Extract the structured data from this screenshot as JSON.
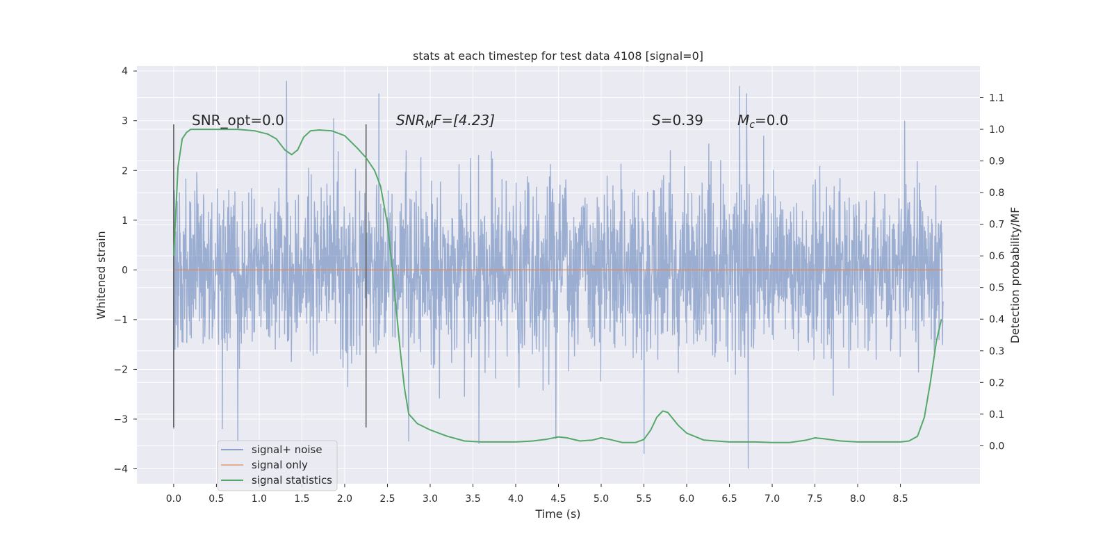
{
  "chart_data": {
    "type": "line",
    "title": "stats at each timestep for test data 4108 [signal=0]",
    "xlabel": "Time (s)",
    "ylabel": "Whitened strain",
    "y2label": "Detection probability/MF",
    "xlim": [
      -0.43,
      9.43
    ],
    "ylim": [
      -4.3,
      4.1
    ],
    "y2lim": [
      -0.12,
      1.2
    ],
    "x_ticks": [
      "0.0",
      "0.5",
      "1.0",
      "1.5",
      "2.0",
      "2.5",
      "3.0",
      "3.5",
      "4.0",
      "4.5",
      "5.0",
      "5.5",
      "6.0",
      "6.5",
      "7.0",
      "7.5",
      "8.0",
      "8.5"
    ],
    "y_ticks": [
      "4",
      "3",
      "2",
      "1",
      "0",
      "−1",
      "−2",
      "−3",
      "−4"
    ],
    "y2_ticks": [
      "1.1",
      "1.0",
      "0.9",
      "0.8",
      "0.7",
      "0.6",
      "0.5",
      "0.4",
      "0.3",
      "0.2",
      "0.1",
      "0.0"
    ],
    "grid": true,
    "legend_position": "lower-left",
    "colors": {
      "background": "#eaeaf2",
      "grid": "#ffffff",
      "noise": "#4c72b0",
      "signal": "#dd8452",
      "statistics": "#55a868",
      "marker": "#555555"
    },
    "annotations": {
      "snr_opt": "SNR_opt=0.0",
      "snr_mf_prefix": "SNR",
      "snr_mf_sub": "M",
      "snr_mf_rest": "F=[4.23]",
      "s_var": "S",
      "s_value": "=0.39",
      "mc_var": "M",
      "mc_sub": "c",
      "mc_value": "=0.0"
    },
    "vlines": [
      0.0,
      2.25
    ],
    "series": [
      {
        "name": "signal+ noise",
        "axis": "left",
        "x_range": [
          0.0,
          9.0
        ],
        "spread": 0.85,
        "envelope_peaks": [
          [
            0.0,
            -3.2
          ],
          [
            0.57,
            -3.2
          ],
          [
            0.75,
            -3.45
          ],
          [
            1.32,
            3.8
          ],
          [
            1.87,
            3.05
          ],
          [
            2.4,
            3.55
          ],
          [
            2.75,
            -3.45
          ],
          [
            3.57,
            -3.5
          ],
          [
            4.47,
            -3.4
          ],
          [
            5.5,
            -3.7
          ],
          [
            6.62,
            3.7
          ],
          [
            6.7,
            3.55
          ],
          [
            6.72,
            -4.0
          ],
          [
            8.55,
            3.0
          ]
        ]
      },
      {
        "name": "signal only",
        "axis": "left",
        "x": [
          0.0,
          9.0
        ],
        "y": [
          0.0,
          0.0
        ]
      },
      {
        "name": "signal statistics",
        "axis": "right",
        "x": [
          0.0,
          0.05,
          0.1,
          0.15,
          0.2,
          0.3,
          0.5,
          0.75,
          0.95,
          1.1,
          1.2,
          1.3,
          1.38,
          1.45,
          1.52,
          1.6,
          1.7,
          1.85,
          2.0,
          2.15,
          2.25,
          2.35,
          2.42,
          2.5,
          2.55,
          2.6,
          2.65,
          2.7,
          2.75,
          2.85,
          3.0,
          3.2,
          3.4,
          3.6,
          3.8,
          4.0,
          4.2,
          4.35,
          4.5,
          4.6,
          4.75,
          4.9,
          5.0,
          5.1,
          5.25,
          5.4,
          5.5,
          5.58,
          5.65,
          5.72,
          5.78,
          5.9,
          6.0,
          6.2,
          6.5,
          6.8,
          7.0,
          7.2,
          7.4,
          7.5,
          7.6,
          7.8,
          8.0,
          8.3,
          8.5,
          8.6,
          8.7,
          8.78,
          8.85,
          8.92,
          8.98
        ],
        "y": [
          0.6,
          0.88,
          0.97,
          0.99,
          1.0,
          1.0,
          1.0,
          1.0,
          0.995,
          0.985,
          0.97,
          0.935,
          0.92,
          0.935,
          0.975,
          0.995,
          0.998,
          0.995,
          0.98,
          0.94,
          0.91,
          0.87,
          0.82,
          0.7,
          0.58,
          0.44,
          0.3,
          0.18,
          0.1,
          0.07,
          0.05,
          0.03,
          0.015,
          0.012,
          0.012,
          0.012,
          0.015,
          0.02,
          0.028,
          0.025,
          0.015,
          0.018,
          0.025,
          0.02,
          0.01,
          0.01,
          0.02,
          0.05,
          0.09,
          0.11,
          0.105,
          0.065,
          0.04,
          0.018,
          0.012,
          0.012,
          0.01,
          0.01,
          0.018,
          0.025,
          0.022,
          0.015,
          0.012,
          0.012,
          0.012,
          0.015,
          0.03,
          0.09,
          0.2,
          0.33,
          0.4
        ]
      }
    ]
  }
}
